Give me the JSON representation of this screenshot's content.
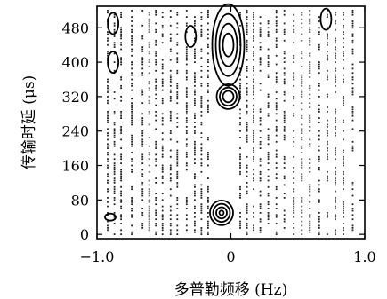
{
  "chart_data": {
    "type": "contour",
    "xlabel": "多普勒频移 (Hz)",
    "ylabel": "传输时延 (μs)",
    "xlim": [
      -1.0,
      1.0
    ],
    "ylim": [
      -10,
      530
    ],
    "x_ticks": [
      -1.0,
      0,
      1.0
    ],
    "x_tick_labels": [
      "−1.0",
      "0",
      "1.0"
    ],
    "y_ticks": [
      0,
      80,
      160,
      240,
      320,
      400,
      480
    ],
    "y_tick_labels": [
      "0",
      "80",
      "160",
      "240",
      "320",
      "400",
      "480"
    ],
    "grid": false,
    "contour_peaks": [
      {
        "x": -0.02,
        "y": 440,
        "levels": 4
      },
      {
        "x": -0.02,
        "y": 320,
        "levels": 3
      },
      {
        "x": -0.07,
        "y": 50,
        "levels": 4
      },
      {
        "x": -0.88,
        "y": 490,
        "levels": 1
      },
      {
        "x": -0.88,
        "y": 400,
        "levels": 1
      },
      {
        "x": -0.9,
        "y": 40,
        "levels": 1
      },
      {
        "x": -0.3,
        "y": 460,
        "levels": 1
      },
      {
        "x": 0.71,
        "y": 500,
        "levels": 1
      }
    ],
    "dotted_streaks_x": [
      -0.92,
      -0.87,
      -0.82,
      -0.74,
      -0.66,
      -0.61,
      -0.56,
      -0.51,
      -0.45,
      -0.4,
      -0.33,
      -0.27,
      -0.22,
      -0.17,
      0.07,
      0.12,
      0.17,
      0.22,
      0.28,
      0.34,
      0.4,
      0.47,
      0.53,
      0.59,
      0.66,
      0.72,
      0.78,
      0.84,
      0.91
    ]
  }
}
